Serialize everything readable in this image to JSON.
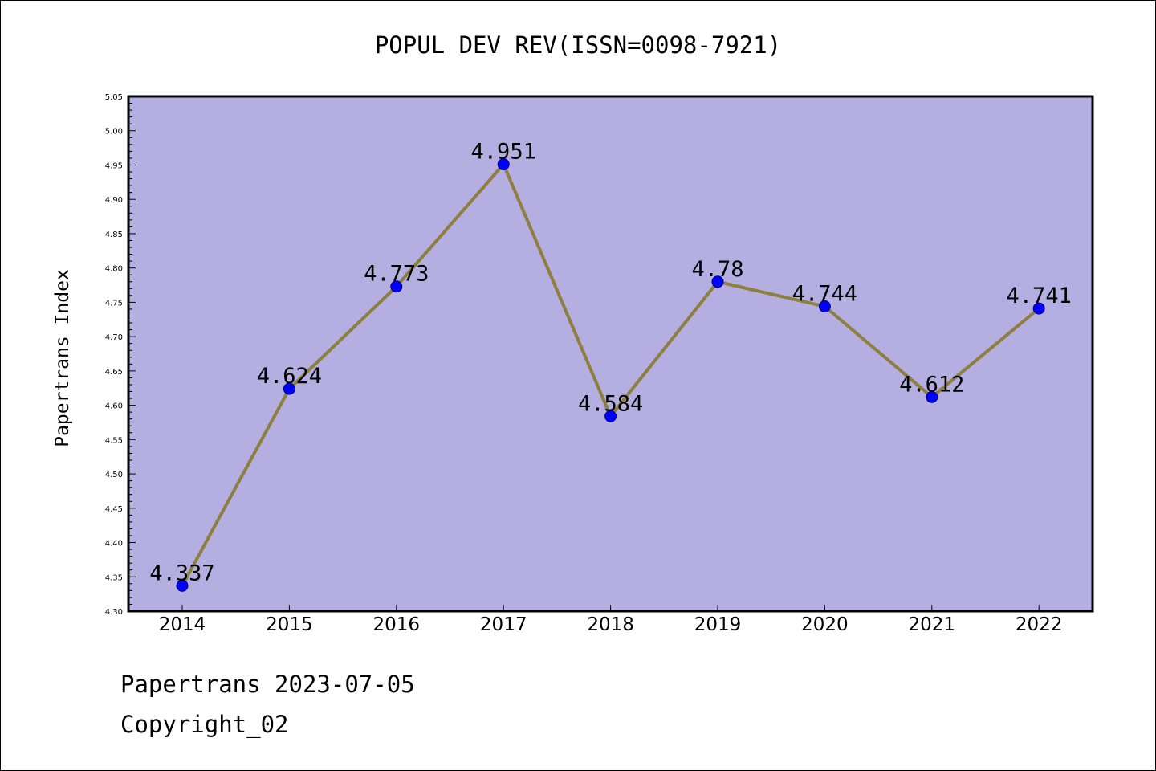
{
  "colors": {
    "plot_background": "#b5aee0",
    "line": "#8c7f3f",
    "marker_fill": "#0000ff",
    "marker_stroke": "#00007a",
    "axis": "#000000"
  },
  "footer": {
    "date_text": "Papertrans 2023-07-05",
    "copyright_text": "Copyright_02"
  },
  "chart_data": {
    "type": "line",
    "title": "POPUL DEV REV(ISSN=0098-7921)",
    "xlabel": "",
    "ylabel": "Papertrans Index",
    "categories": [
      "2014",
      "2015",
      "2016",
      "2017",
      "2018",
      "2019",
      "2020",
      "2021",
      "2022"
    ],
    "series": [
      {
        "values": [
          4.337,
          4.624,
          4.773,
          4.951,
          4.584,
          4.78,
          4.744,
          4.612,
          4.741
        ],
        "labels": [
          "4.337",
          "4.624",
          "4.773",
          "4.951",
          "4.584",
          "4.78",
          "4.744",
          "4.612",
          "4.741"
        ]
      }
    ],
    "ylim": [
      4.3,
      5.05
    ],
    "yticks": [
      "4.30",
      "4.35",
      "4.40",
      "4.45",
      "4.50",
      "4.55",
      "4.60",
      "4.65",
      "4.70",
      "4.75",
      "4.80",
      "4.85",
      "4.90",
      "4.95",
      "5.00",
      "5.05"
    ],
    "grid": false,
    "legend": "none"
  }
}
